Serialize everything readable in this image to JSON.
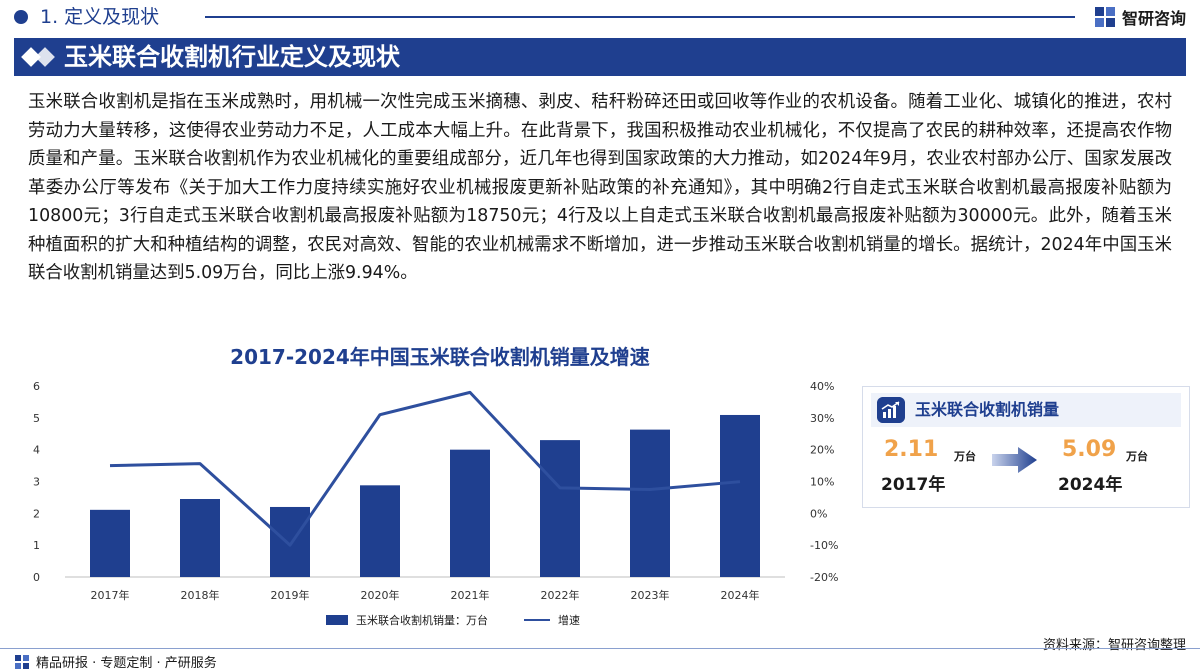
{
  "header": {
    "section": "1. 定义及现状",
    "brand": "智研咨询"
  },
  "banner": {
    "title": "玉米联合收割机行业定义及现状"
  },
  "paragraph": "玉米联合收割机是指在玉米成熟时，用机械一次性完成玉米摘穗、剥皮、秸秆粉碎还田或回收等作业的农机设备。随着工业化、城镇化的推进，农村劳动力大量转移，这使得农业劳动力不足，人工成本大幅上升。在此背景下，我国积极推动农业机械化，不仅提高了农民的耕种效率，还提高农作物质量和产量。玉米联合收割机作为农业机械化的重要组成部分，近几年也得到国家政策的大力推动，如2024年9月，农业农村部办公厅、国家发展改革委办公厅等发布《关于加大工作力度持续实施好农业机械报废更新补贴政策的补充通知》，其中明确2行自走式玉米联合收割机最高报废补贴额为10800元；3行自走式玉米联合收割机最高报废补贴额为18750元；4行及以上自走式玉米联合收割机最高报废补贴额为30000元。此外，随着玉米种植面积的扩大和种植结构的调整，农民对高效、智能的农业机械需求不断增加，进一步推动玉米联合收割机销量的增长。据统计，2024年中国玉米联合收割机销量达到5.09万台，同比上涨9.94%。",
  "chart_data": {
    "type": "bar+line",
    "title": "2017-2024年中国玉米联合收割机销量及增速",
    "categories": [
      "2017年",
      "2018年",
      "2019年",
      "2020年",
      "2021年",
      "2022年",
      "2023年",
      "2024年"
    ],
    "series": [
      {
        "name": "玉米联合收割机销量：万台",
        "type": "bar",
        "axis": "left",
        "values": [
          2.11,
          2.45,
          2.2,
          2.88,
          4.0,
          4.3,
          4.63,
          5.09
        ]
      },
      {
        "name": "增速",
        "type": "line",
        "axis": "right",
        "values": [
          15,
          15.6,
          -10,
          31,
          38,
          8,
          7.5,
          9.94
        ]
      }
    ],
    "y_left": {
      "ticks": [
        "0",
        "1",
        "2",
        "3",
        "4",
        "5",
        "6"
      ],
      "range": [
        0,
        6
      ]
    },
    "y_right": {
      "ticks": [
        "-20%",
        "-10%",
        "0%",
        "10%",
        "20%",
        "30%",
        "40%"
      ],
      "range": [
        -20,
        40
      ]
    },
    "colors": {
      "bar": "#1f3f8f",
      "line": "#2e4f9e"
    },
    "grid": false,
    "legend_position": "bottom"
  },
  "kpi": {
    "title": "玉米联合收割机销量",
    "left_value": "2.11",
    "left_unit": "万台",
    "left_year": "2017年",
    "right_value": "5.09",
    "right_unit": "万台",
    "right_year": "2024年",
    "icon": "chart-trend-icon"
  },
  "footer": {
    "source": "资料来源：智研咨询整理",
    "tagline": "精品研报 · 专题定制 · 产研服务"
  },
  "colors": {
    "primary": "#1f3f8f",
    "accent": "#f0a24a"
  }
}
